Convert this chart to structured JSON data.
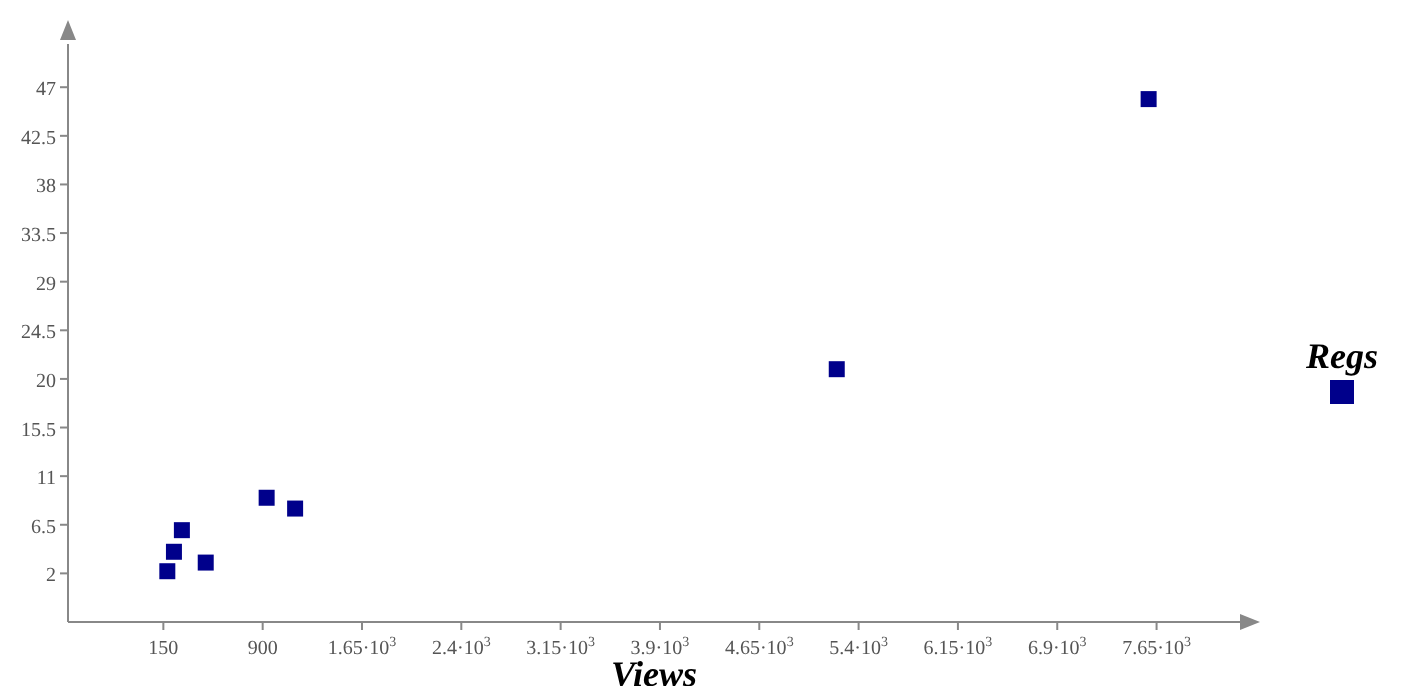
{
  "chart_data": {
    "type": "scatter",
    "xlabel": "Views",
    "x": [
      180,
      230,
      290,
      470,
      930,
      1145,
      5235,
      7590
    ],
    "series": [
      {
        "name": "Regs",
        "color": "#00008b",
        "values": [
          2.2,
          4.0,
          6.0,
          3.0,
          9.0,
          8.0,
          20.9,
          45.9
        ]
      }
    ],
    "xlim": [
      -570,
      8280
    ],
    "ylim": [
      -2.5,
      51
    ],
    "xticks": [
      150,
      900,
      {
        "value": 1650,
        "label": "1.65·10$^{3}$"
      },
      {
        "value": 2400,
        "label": "2.4·10$^{3}$"
      },
      {
        "value": 3150,
        "label": "3.15·10$^{3}$"
      },
      {
        "value": 3900,
        "label": "3.9·10$^{3}$"
      },
      {
        "value": 4650,
        "label": "4.65·10$^{3}$"
      },
      {
        "value": 5400,
        "label": "5.4·10$^{3}$"
      },
      {
        "value": 6150,
        "label": "6.15·10$^{3}$"
      },
      {
        "value": 6900,
        "label": "6.9·10$^{3}$"
      },
      {
        "value": 7650,
        "label": "7.65·10$^{3}$"
      }
    ],
    "yticks": [
      2,
      6.5,
      11,
      15.5,
      20,
      24.5,
      29,
      33.5,
      38,
      42.5,
      47
    ],
    "grid": false,
    "legend": "right",
    "marker": "square"
  }
}
